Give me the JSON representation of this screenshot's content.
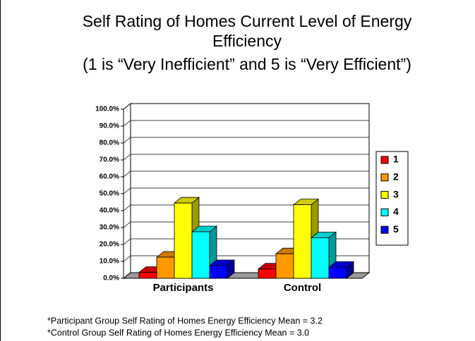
{
  "chart_data": {
    "type": "bar3d",
    "title": "Self Rating of Homes Current Level of Energy Efficiency",
    "subtitle": "(1 is “Very Inefficient” and 5 is “Very Efficient”)",
    "categories": [
      "Participants",
      "Control"
    ],
    "series": [
      {
        "name": "1",
        "color": "#ff0000",
        "values": [
          3.5,
          5.5
        ]
      },
      {
        "name": "2",
        "color": "#ff9900",
        "values": [
          12.5,
          14.5
        ]
      },
      {
        "name": "3",
        "color": "#ffff00",
        "values": [
          44.5,
          43.5
        ]
      },
      {
        "name": "4",
        "color": "#00ffff",
        "values": [
          27.5,
          24
        ]
      },
      {
        "name": "5",
        "color": "#0000ff",
        "values": [
          7.5,
          6.5
        ]
      }
    ],
    "ylim": [
      0,
      100
    ],
    "yticks": [
      {
        "value": 0,
        "label": "0.0%"
      },
      {
        "value": 10,
        "label": "10.0%"
      },
      {
        "value": 20,
        "label": "20.0%"
      },
      {
        "value": 30,
        "label": "30.0%"
      },
      {
        "value": 40,
        "label": "40.0%"
      },
      {
        "value": 50,
        "label": "50.0%"
      },
      {
        "value": 60,
        "label": "60.0%"
      },
      {
        "value": 70,
        "label": "70.0%"
      },
      {
        "value": 80,
        "label": "80.0%"
      },
      {
        "value": 90,
        "label": "90.0%"
      },
      {
        "value": 100,
        "label": "100.0%"
      }
    ],
    "grid": true,
    "legend": "right",
    "notes": [
      "*Participant Group Self Rating of Homes Energy Efficiency Mean = 3.2",
      "*Control Group Self Rating of Homes Energy Efficiency Mean = 3.0"
    ]
  }
}
